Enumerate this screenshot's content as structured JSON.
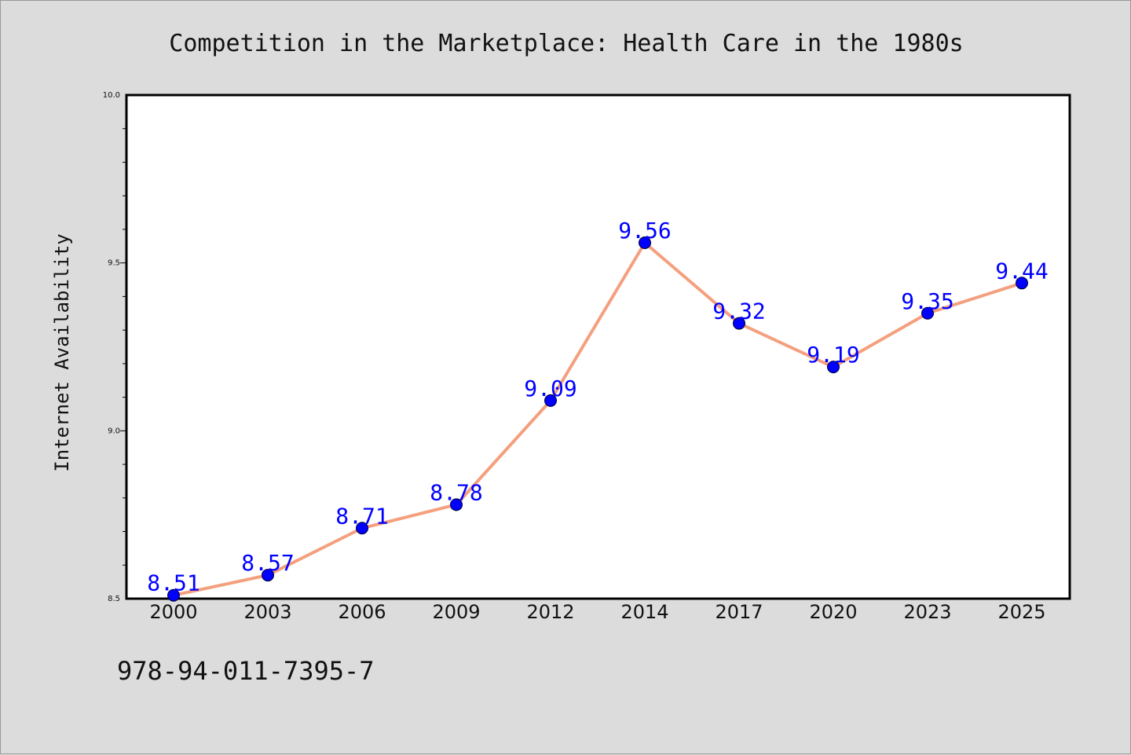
{
  "chart_data": {
    "type": "line",
    "title": "Competition in the Marketplace: Health Care in the 1980s",
    "xlabel": "",
    "ylabel": "Internet Availability",
    "categories": [
      "2000",
      "2003",
      "2006",
      "2009",
      "2012",
      "2014",
      "2017",
      "2020",
      "2023",
      "2025"
    ],
    "series": [
      {
        "values": [
          8.51,
          8.57,
          8.71,
          8.78,
          9.09,
          9.56,
          9.32,
          9.19,
          9.35,
          9.44
        ],
        "labels": [
          "8.51",
          "8.57",
          "8.71",
          "8.78",
          "9.09",
          "9.56",
          "9.32",
          "9.19",
          "9.35",
          "9.44"
        ],
        "line_color": "#f4a07e",
        "marker_color": "#0000ff"
      }
    ],
    "ylim": [
      8.5,
      10.0
    ],
    "yticks": [
      "8.5",
      "9.0",
      "9.5",
      "10.0"
    ],
    "grid": false,
    "data_label_color": "#0000ff"
  },
  "footer": {
    "isbn": "978-94-011-7395-7"
  }
}
